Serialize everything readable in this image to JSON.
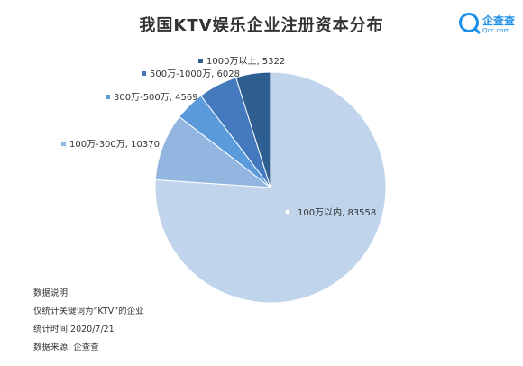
{
  "title": "我国KTV娱乐企业注册资本分布",
  "logo": {
    "name": "企查查",
    "sub": "Qcc.com"
  },
  "chart_data": {
    "type": "pie",
    "title": "我国KTV娱乐企业注册资本分布",
    "slices": [
      {
        "label": "100万以内",
        "value": 83558,
        "color": "#c0d4ec",
        "text": "100万以内, 83558"
      },
      {
        "label": "100万-300万",
        "value": 10370,
        "color": "#93b6e0",
        "text": "100万-300万, 10370"
      },
      {
        "label": "300万-500万",
        "value": 4569,
        "color": "#5b9bdb",
        "text": "300万-500万, 4569"
      },
      {
        "label": "500万-1000万",
        "value": 6028,
        "color": "#4479bd",
        "text": "500万-1000万, 6028"
      },
      {
        "label": "1000万以上",
        "value": 5322,
        "color": "#2f5f91",
        "text": "1000万以上, 5322"
      }
    ]
  },
  "notes": {
    "heading": "数据说明:",
    "line1": "仅统计关键词为“KTV”的企业",
    "line2": "统计时间 2020/7/21",
    "line3": "数据来源: 企查查"
  }
}
